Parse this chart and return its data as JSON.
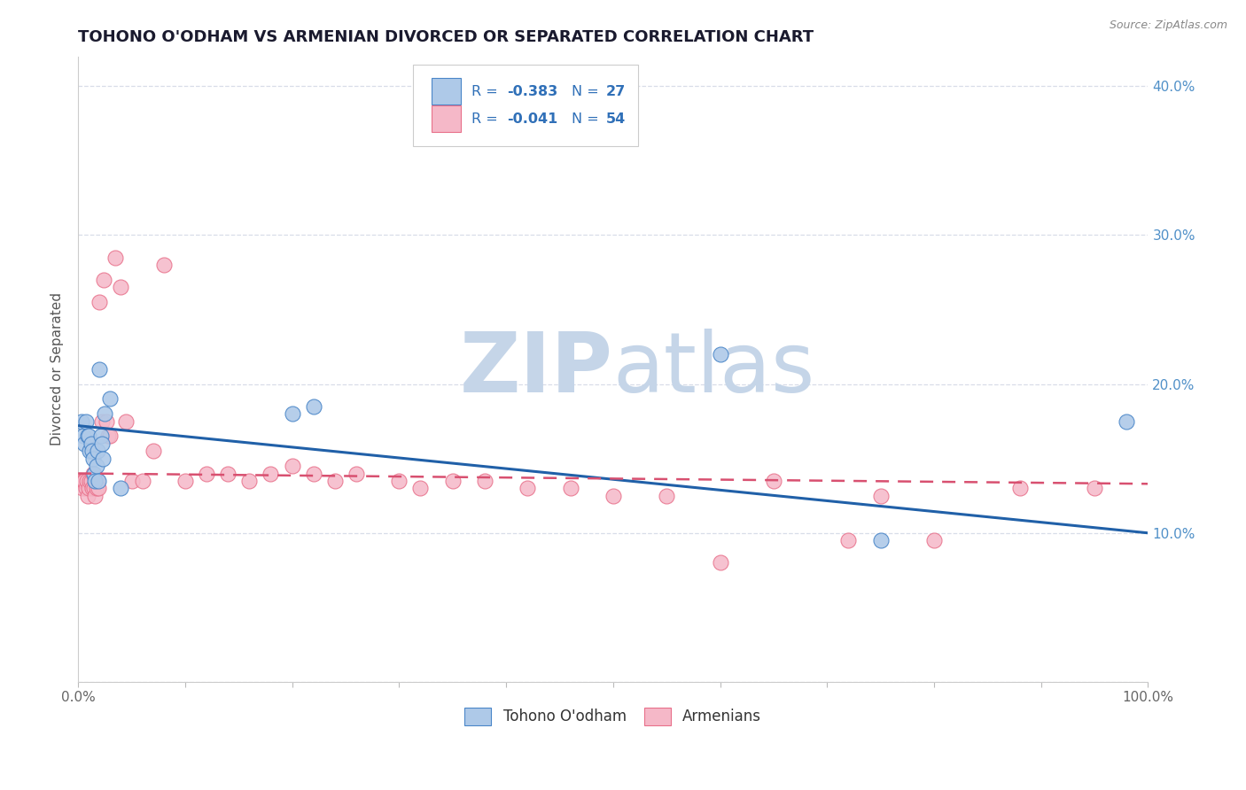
{
  "title": "TOHONO O'ODHAM VS ARMENIAN DIVORCED OR SEPARATED CORRELATION CHART",
  "source": "Source: ZipAtlas.com",
  "ylabel": "Divorced or Separated",
  "xlim": [
    0.0,
    1.0
  ],
  "ylim": [
    0.0,
    0.42
  ],
  "xtick_positions": [
    0.0,
    0.1,
    0.2,
    0.3,
    0.4,
    0.5,
    0.6,
    0.7,
    0.8,
    0.9,
    1.0
  ],
  "xticklabels": [
    "0.0%",
    "",
    "",
    "",
    "",
    "",
    "",
    "",
    "",
    "",
    "100.0%"
  ],
  "ytick_positions": [
    0.0,
    0.1,
    0.2,
    0.3,
    0.4
  ],
  "yticklabels_right": [
    "",
    "10.0%",
    "20.0%",
    "30.0%",
    "40.0%"
  ],
  "blue_fill": "#aec9e8",
  "pink_fill": "#f5b8c8",
  "blue_edge": "#4a86c8",
  "pink_edge": "#e8708a",
  "blue_line_color": "#2060a8",
  "pink_line_color": "#d85070",
  "right_tick_color": "#5090c8",
  "grid_color": "#d8dde8",
  "background": "#ffffff",
  "watermark_color": "#c5d5e8",
  "legend_text_color": "#3070b8",
  "tohono_x": [
    0.003,
    0.005,
    0.006,
    0.007,
    0.009,
    0.01,
    0.011,
    0.012,
    0.013,
    0.014,
    0.015,
    0.016,
    0.017,
    0.018,
    0.019,
    0.02,
    0.021,
    0.022,
    0.023,
    0.025,
    0.03,
    0.04,
    0.2,
    0.22,
    0.6,
    0.75,
    0.98
  ],
  "tohono_y": [
    0.175,
    0.165,
    0.16,
    0.175,
    0.165,
    0.165,
    0.155,
    0.16,
    0.155,
    0.15,
    0.14,
    0.135,
    0.145,
    0.155,
    0.135,
    0.21,
    0.165,
    0.16,
    0.15,
    0.18,
    0.19,
    0.13,
    0.18,
    0.185,
    0.22,
    0.095,
    0.175
  ],
  "armenian_x": [
    0.003,
    0.004,
    0.005,
    0.006,
    0.007,
    0.008,
    0.009,
    0.01,
    0.011,
    0.012,
    0.013,
    0.014,
    0.015,
    0.016,
    0.017,
    0.018,
    0.019,
    0.02,
    0.022,
    0.024,
    0.026,
    0.028,
    0.03,
    0.035,
    0.04,
    0.045,
    0.05,
    0.06,
    0.07,
    0.08,
    0.1,
    0.12,
    0.14,
    0.16,
    0.18,
    0.2,
    0.22,
    0.24,
    0.26,
    0.3,
    0.32,
    0.35,
    0.38,
    0.42,
    0.46,
    0.5,
    0.55,
    0.6,
    0.65,
    0.72,
    0.75,
    0.8,
    0.88,
    0.95
  ],
  "armenian_y": [
    0.135,
    0.13,
    0.135,
    0.135,
    0.13,
    0.135,
    0.125,
    0.13,
    0.135,
    0.135,
    0.13,
    0.14,
    0.13,
    0.125,
    0.13,
    0.135,
    0.13,
    0.255,
    0.175,
    0.27,
    0.175,
    0.165,
    0.165,
    0.285,
    0.265,
    0.175,
    0.135,
    0.135,
    0.155,
    0.28,
    0.135,
    0.14,
    0.14,
    0.135,
    0.14,
    0.145,
    0.14,
    0.135,
    0.14,
    0.135,
    0.13,
    0.135,
    0.135,
    0.13,
    0.13,
    0.125,
    0.125,
    0.08,
    0.135,
    0.095,
    0.125,
    0.095,
    0.13,
    0.13
  ],
  "blue_trendline_x": [
    0.0,
    1.0
  ],
  "blue_trendline_y": [
    0.172,
    0.1
  ],
  "pink_trendline_x": [
    0.0,
    1.0
  ],
  "pink_trendline_y": [
    0.14,
    0.133
  ]
}
